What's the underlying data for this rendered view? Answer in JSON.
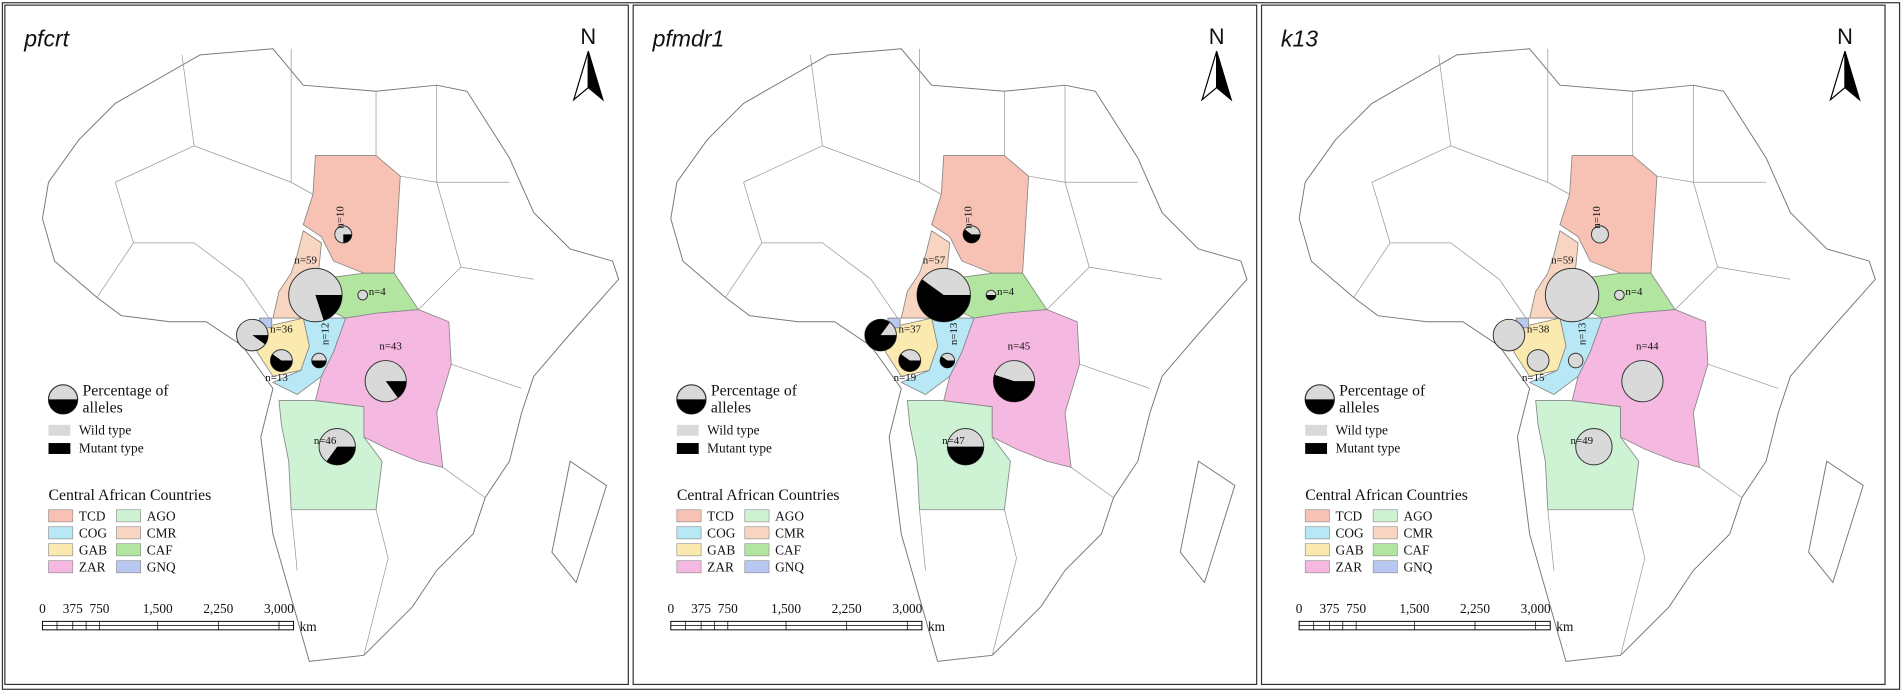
{
  "panels": [
    {
      "title": "pfcrt",
      "pies": [
        {
          "label": "n=10",
          "mutant_percent": 25
        },
        {
          "label": "n=4",
          "mutant_percent": 0
        },
        {
          "label": "n=59",
          "mutant_percent": 20
        },
        {
          "label": "n=36",
          "mutant_percent": 10
        },
        {
          "label": "n=13",
          "mutant_percent": 60
        },
        {
          "label": "n=12",
          "mutant_percent": 50
        },
        {
          "label": "n=43",
          "mutant_percent": 15
        },
        {
          "label": "n=46",
          "mutant_percent": 35
        }
      ]
    },
    {
      "title": "pfmdr1",
      "pies": [
        {
          "label": "n=10",
          "mutant_percent": 60
        },
        {
          "label": "n=4",
          "mutant_percent": 50
        },
        {
          "label": "n=57",
          "mutant_percent": 60
        },
        {
          "label": "n=37",
          "mutant_percent": 85
        },
        {
          "label": "n=19",
          "mutant_percent": 60
        },
        {
          "label": "n=13",
          "mutant_percent": 60
        },
        {
          "label": "n=45",
          "mutant_percent": 55
        },
        {
          "label": "n=47",
          "mutant_percent": 50
        }
      ]
    },
    {
      "title": "k13",
      "pies": [
        {
          "label": "n=10",
          "mutant_percent": 0
        },
        {
          "label": "n=4",
          "mutant_percent": 0
        },
        {
          "label": "n=59",
          "mutant_percent": 0
        },
        {
          "label": "n=38",
          "mutant_percent": 0
        },
        {
          "label": "n=15",
          "mutant_percent": 0
        },
        {
          "label": "n=13",
          "mutant_percent": 0
        },
        {
          "label": "n=44",
          "mutant_percent": 0
        },
        {
          "label": "n=49",
          "mutant_percent": 0
        }
      ]
    }
  ],
  "north": "N",
  "legend": {
    "pie_title": [
      "Percentage of",
      "alleles"
    ],
    "wild": "Wild type",
    "mutant": "Mutant type",
    "countries_title": "Central African Countries",
    "countries": [
      {
        "code": "TCD",
        "color": "#f7c2b3"
      },
      {
        "code": "AGO",
        "color": "#cdf2d4"
      },
      {
        "code": "COG",
        "color": "#b8e8f5"
      },
      {
        "code": "CMR",
        "color": "#f8d5c0"
      },
      {
        "code": "GAB",
        "color": "#fbeab0"
      },
      {
        "code": "CAF",
        "color": "#b2e6a0"
      },
      {
        "code": "ZAR",
        "color": "#f5b8e0"
      },
      {
        "code": "GNQ",
        "color": "#b8c8f0"
      }
    ]
  },
  "scale": {
    "labels": [
      "0",
      "375",
      "750",
      "1,500",
      "2,250",
      "3,000"
    ],
    "unit": "km"
  }
}
